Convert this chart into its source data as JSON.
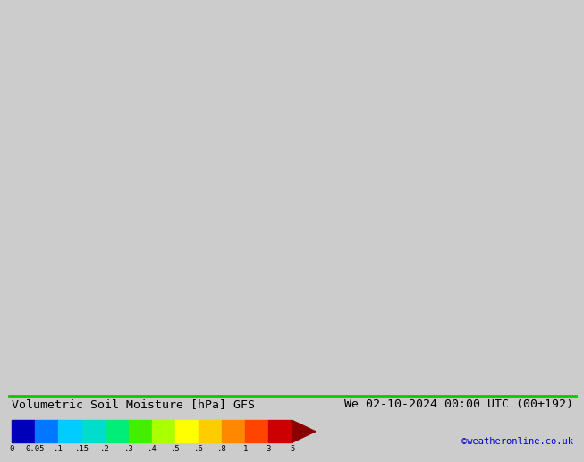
{
  "title_left": "Volumetric Soil Moisture [hPa] GFS",
  "title_right": "We 02-10-2024 00:00 UTC (00+192)",
  "credit": "©weatheronline.co.uk",
  "colorbar_tick_labels": [
    "0",
    "0.05",
    ".1",
    ".15",
    ".2",
    ".3",
    ".4",
    ".5",
    ".6",
    ".8",
    "1",
    "3",
    "5"
  ],
  "colorbar_colors": [
    "#0000bb",
    "#0077ff",
    "#00ccff",
    "#00ddcc",
    "#00ee77",
    "#44ee00",
    "#aaff00",
    "#ffff00",
    "#ffcc00",
    "#ff8800",
    "#ff4400",
    "#cc0000",
    "#880000"
  ],
  "bg_color": "#cccccc",
  "map_bg": "#e0e0e0",
  "bottom_bar_color": "#ffffff",
  "title_fontsize": 9.5,
  "credit_color": "#0000cc",
  "credit_fontsize": 7.5,
  "tick_fontsize": 6.5,
  "green_line_color": "#00cc00"
}
